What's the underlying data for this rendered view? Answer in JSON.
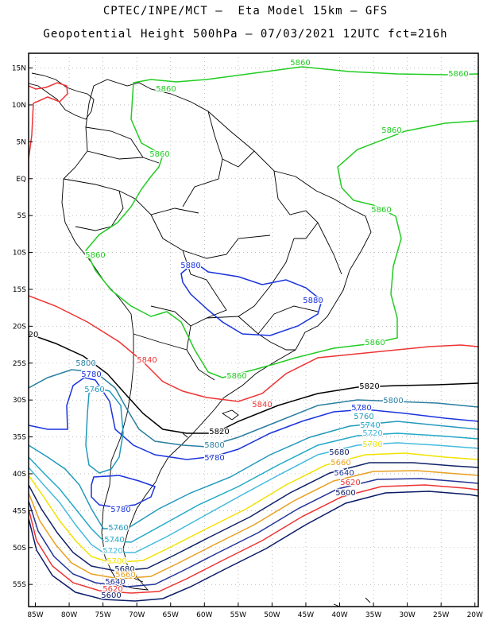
{
  "header": {
    "line1": "CPTEC/INPE/MCT –  Eta Model 15km – GFS",
    "line2": "Geopotential Height 500hPa – 07/03/2021 12UTC fct=216h"
  },
  "map": {
    "lat_ticks": [
      "15N",
      "10N",
      "5N",
      "EQ",
      "5S",
      "10S",
      "15S",
      "20S",
      "25S",
      "30S",
      "35S",
      "40S",
      "45S",
      "50S",
      "55S"
    ],
    "lon_ticks": [
      "85W",
      "80W",
      "75W",
      "70W",
      "65W",
      "60W",
      "55W",
      "50W",
      "45W",
      "40W",
      "35W",
      "30W",
      "25W",
      "20W"
    ],
    "extent": {
      "lon_min": -86,
      "lon_max": -19.5,
      "lat_min": -58,
      "lat_max": 17
    },
    "grid": "dotted"
  },
  "contours": {
    "colors": {
      "5880": "#1a33dd",
      "5860": "#22cc22",
      "5840": "#ee3333",
      "5820": "#000000",
      "5800": "#2a7fa0",
      "5780": "#1a33dd",
      "5760": "#2299bb",
      "5740": "#22a8c8",
      "5720": "#44bbdd",
      "5700": "#f2e200",
      "5680": "#112266",
      "5660": "#e8a020",
      "5640": "#223399",
      "5620": "#ee3333",
      "5600": "#0a1a66"
    },
    "labels": [
      {
        "id": "lab-5860-n1",
        "text": "5860",
        "level": "5860"
      },
      {
        "id": "lab-5860-n2",
        "text": "5860",
        "level": "5860"
      },
      {
        "id": "lab-5860-n3",
        "text": "5860",
        "level": "5860"
      },
      {
        "id": "lab-5860-n4",
        "text": "5860",
        "level": "5860"
      },
      {
        "id": "lab-5860-w1",
        "text": "5860",
        "level": "5860"
      },
      {
        "id": "lab-5860-e1",
        "text": "5860",
        "level": "5860"
      },
      {
        "id": "lab-5860-s1",
        "text": "5860",
        "level": "5860"
      },
      {
        "id": "lab-5860-s2",
        "text": "5860",
        "level": "5860"
      },
      {
        "id": "lab-5860-w2",
        "text": "5860",
        "level": "5860"
      },
      {
        "id": "lab-5880-a",
        "text": "5880",
        "level": "5880"
      },
      {
        "id": "lab-5880-b",
        "text": "5880",
        "level": "5880"
      },
      {
        "id": "lab-5840-a",
        "text": "5840",
        "level": "5840"
      },
      {
        "id": "lab-5840-b",
        "text": "5840",
        "level": "5840"
      },
      {
        "id": "lab-5820-a",
        "text": "5820",
        "level": "5820"
      },
      {
        "id": "lab-5820-b",
        "text": "5820",
        "level": "5820"
      },
      {
        "id": "lab-5820-c",
        "text": "20",
        "level": "5820"
      },
      {
        "id": "lab-5800-a",
        "text": "5800",
        "level": "5800"
      },
      {
        "id": "lab-5800-b",
        "text": "5800",
        "level": "5800"
      },
      {
        "id": "lab-5800-c",
        "text": "5800",
        "level": "5800"
      },
      {
        "id": "lab-5780-a",
        "text": "5780",
        "level": "5780"
      },
      {
        "id": "lab-5780-b",
        "text": "5780",
        "level": "5780"
      },
      {
        "id": "lab-5780-c",
        "text": "5780",
        "level": "5780"
      },
      {
        "id": "lab-5780-d",
        "text": "5780",
        "level": "5780"
      },
      {
        "id": "lab-5760-a",
        "text": "5760",
        "level": "5760"
      },
      {
        "id": "lab-5760-b",
        "text": "5760",
        "level": "5760"
      },
      {
        "id": "lab-5760-c",
        "text": "5760",
        "level": "5760"
      },
      {
        "id": "lab-5740-a",
        "text": "5740",
        "level": "5740"
      },
      {
        "id": "lab-5740-b",
        "text": "5740",
        "level": "5740"
      },
      {
        "id": "lab-5720-a",
        "text": "5720",
        "level": "5720"
      },
      {
        "id": "lab-5720-b",
        "text": "5720",
        "level": "5720"
      },
      {
        "id": "lab-5700-a",
        "text": "5700",
        "level": "5700"
      },
      {
        "id": "lab-5700-b",
        "text": "5700",
        "level": "5700"
      },
      {
        "id": "lab-5680-a",
        "text": "5680",
        "level": "5680"
      },
      {
        "id": "lab-5680-b",
        "text": "5680",
        "level": "5680"
      },
      {
        "id": "lab-5660-a",
        "text": "5660",
        "level": "5660"
      },
      {
        "id": "lab-5660-b",
        "text": "5660",
        "level": "5660"
      },
      {
        "id": "lab-5640-a",
        "text": "5640",
        "level": "5640"
      },
      {
        "id": "lab-5640-b",
        "text": "5640",
        "level": "5640"
      },
      {
        "id": "lab-5620-a",
        "text": "5620",
        "level": "5620"
      },
      {
        "id": "lab-5620-b",
        "text": "5620",
        "level": "5620"
      },
      {
        "id": "lab-5600-a",
        "text": "5600",
        "level": "5600"
      },
      {
        "id": "lab-5600-b",
        "text": "5600",
        "level": "5600"
      }
    ]
  }
}
